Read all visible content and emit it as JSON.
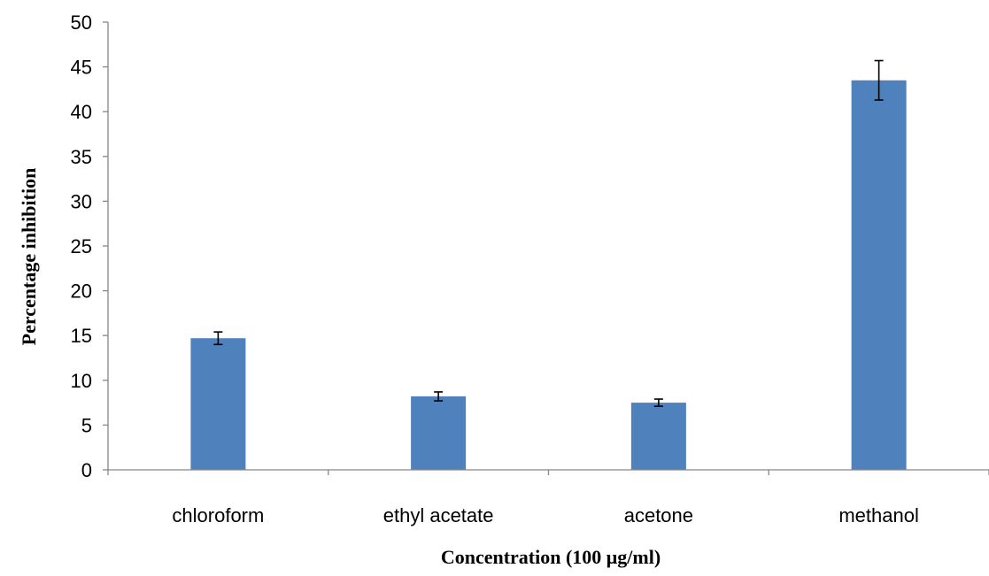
{
  "chart_data": {
    "type": "bar",
    "categories": [
      "chloroform",
      "ethyl acetate",
      "acetone",
      "methanol"
    ],
    "values": [
      14.7,
      8.2,
      7.5,
      43.5
    ],
    "error": [
      0.7,
      0.5,
      0.4,
      2.2
    ],
    "xlabel": "Concentration  (100  μg/ml)",
    "ylabel": "Percentage  inhibition",
    "ylim": [
      0,
      50
    ],
    "yticks": [
      0,
      5,
      10,
      15,
      20,
      25,
      30,
      35,
      40,
      45,
      50
    ],
    "grid": false,
    "legend": "none",
    "bar_color": "#4F81BD",
    "axis_color": "#868686"
  }
}
